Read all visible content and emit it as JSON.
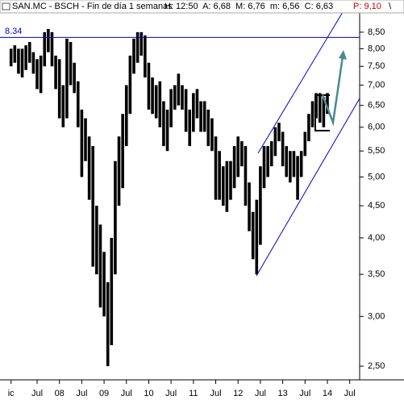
{
  "chart_data": {
    "type": "range-bar",
    "header": {
      "symbol": "SAN.MC - BSCH - Fin de día 1 semanas",
      "stats": "H: 12:50  A: 6,68  M: 6,76  m: 6,56  C: 6,63",
      "projection": "P: 9,10",
      "marker": "\\"
    },
    "categories": [
      "ic",
      null,
      null,
      null,
      null,
      null,
      null,
      "Jul",
      null,
      null,
      null,
      null,
      null,
      "08",
      null,
      null,
      null,
      null,
      null,
      "Jul",
      null,
      null,
      null,
      null,
      null,
      "09",
      null,
      null,
      null,
      null,
      null,
      "Jul",
      null,
      null,
      null,
      null,
      null,
      "10",
      null,
      null,
      null,
      null,
      null,
      "Jul",
      null,
      null,
      null,
      null,
      null,
      "11",
      null,
      null,
      null,
      null,
      null,
      "Jul",
      null,
      null,
      null,
      null,
      null,
      "12",
      null,
      null,
      null,
      null,
      null,
      "Jul",
      null,
      null,
      null,
      null,
      null,
      "13",
      null,
      null,
      null,
      null,
      null,
      "Jul",
      null,
      null,
      null,
      null,
      null,
      "14",
      null,
      null,
      null,
      null,
      null,
      "Jul"
    ],
    "low": [
      7.5,
      7.6,
      7.3,
      7.2,
      7.4,
      7.6,
      7.3,
      6.9,
      6.8,
      7.5,
      7.9,
      7.5,
      6.9,
      6.2,
      6.0,
      6.2,
      7.0,
      6.8,
      6.0,
      5.0,
      5.3,
      4.6,
      3.6,
      3.5,
      3.1,
      3.0,
      2.5,
      2.7,
      3.5,
      4.5,
      4.8,
      5.6,
      6.3,
      7.3,
      7.6,
      7.8,
      7.2,
      6.4,
      6.3,
      6.2,
      6.0,
      5.6,
      5.5,
      6.0,
      6.4,
      6.5,
      6.4,
      5.9,
      5.6,
      5.9,
      6.2,
      5.9,
      5.9,
      5.6,
      5.5,
      4.6,
      4.6,
      4.5,
      4.4,
      4.6,
      4.8,
      5.0,
      5.2,
      4.5,
      4.1,
      3.7,
      3.5,
      3.9,
      4.8,
      5.0,
      5.2,
      5.4,
      5.7,
      5.2,
      5.0,
      4.9,
      5.0,
      4.6,
      5.0,
      5.4,
      5.7,
      6.0,
      6.2,
      6.1,
      6.0,
      6.3,
      null,
      null,
      null,
      null,
      null,
      null
    ],
    "high": [
      8.0,
      8.1,
      8.0,
      8.0,
      8.1,
      8.2,
      7.9,
      7.7,
      7.8,
      8.5,
      8.6,
      8.5,
      7.8,
      7.7,
      7.0,
      8.3,
      8.2,
      7.6,
      7.1,
      6.4,
      6.2,
      5.8,
      5.6,
      4.5,
      4.2,
      3.8,
      3.4,
      4.0,
      5.3,
      5.8,
      6.3,
      7.0,
      7.8,
      8.3,
      8.5,
      8.5,
      8.4,
      7.6,
      7.2,
      7.0,
      7.1,
      6.6,
      6.4,
      6.9,
      7.0,
      7.3,
      7.0,
      6.9,
      6.4,
      6.8,
      6.9,
      6.6,
      6.6,
      6.4,
      6.2,
      5.8,
      5.5,
      5.2,
      5.3,
      5.3,
      5.6,
      5.8,
      5.7,
      5.6,
      4.9,
      4.4,
      4.6,
      5.2,
      5.6,
      5.6,
      5.7,
      6.0,
      6.1,
      5.9,
      5.6,
      5.5,
      5.5,
      5.4,
      5.5,
      5.9,
      6.3,
      6.6,
      6.8,
      6.8,
      6.7,
      6.8,
      null,
      null,
      null,
      null,
      null,
      null
    ],
    "color": "#000000",
    "log_scale": true,
    "ylim": [
      2.385,
      9.34
    ],
    "yticks": [
      {
        "value": 2.5,
        "label": "2,50"
      },
      {
        "value": 3.0,
        "label": "3,00"
      },
      {
        "value": 3.5,
        "label": "3,50"
      },
      {
        "value": 4.0,
        "label": "4,00"
      },
      {
        "value": 4.5,
        "label": "4,50"
      },
      {
        "value": 5.0,
        "label": "5,00"
      },
      {
        "value": 5.5,
        "label": "5,50"
      },
      {
        "value": 6.0,
        "label": "6,00"
      },
      {
        "value": 6.5,
        "label": "6,50"
      },
      {
        "value": 7.0,
        "label": "7,00"
      },
      {
        "value": 7.5,
        "label": "7,50"
      },
      {
        "value": 8.0,
        "label": "8,00"
      },
      {
        "value": 8.5,
        "label": "8,50"
      }
    ],
    "reference_line": {
      "value": 8.34,
      "label": "8.34",
      "color": "#0000cc"
    }
  }
}
